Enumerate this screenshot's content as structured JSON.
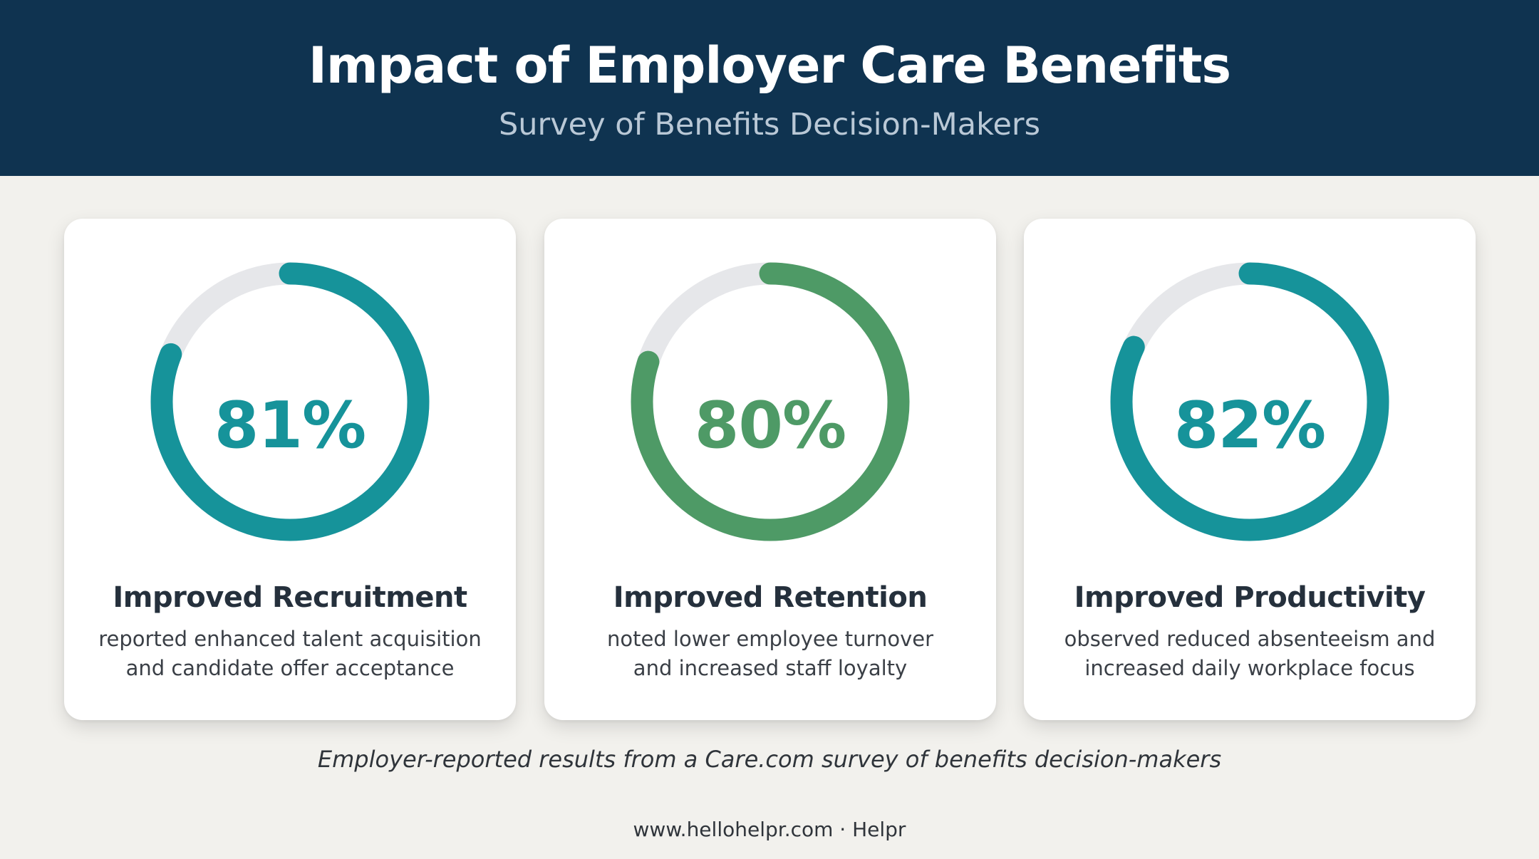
{
  "header": {
    "title": "Impact of Employer Care Benefits",
    "subtitle": "Survey of Benefits Decision-Makers"
  },
  "colors": {
    "header_bg": "#0f3350",
    "teal": "#16939a",
    "green": "#4e9a66",
    "track": "#e6e7ea"
  },
  "chart_data": {
    "type": "pie",
    "series": [
      {
        "name": "Improved Recruitment",
        "value": 81,
        "label": "81%",
        "description": [
          "reported enhanced talent acquisition",
          "and candidate offer acceptance"
        ],
        "color": "#16939a"
      },
      {
        "name": "Improved Retention",
        "value": 80,
        "label": "80%",
        "description": [
          "noted lower employee turnover",
          "and increased staff loyalty"
        ],
        "color": "#4e9a66"
      },
      {
        "name": "Improved Productivity",
        "value": 82,
        "label": "82%",
        "description": [
          "observed reduced absenteeism and",
          "increased daily workplace focus"
        ],
        "color": "#16939a"
      }
    ],
    "max": 100
  },
  "footnote": "Employer-reported results from a Care.com survey of benefits decision-makers",
  "source": "www.hellohelpr.com · Helpr"
}
